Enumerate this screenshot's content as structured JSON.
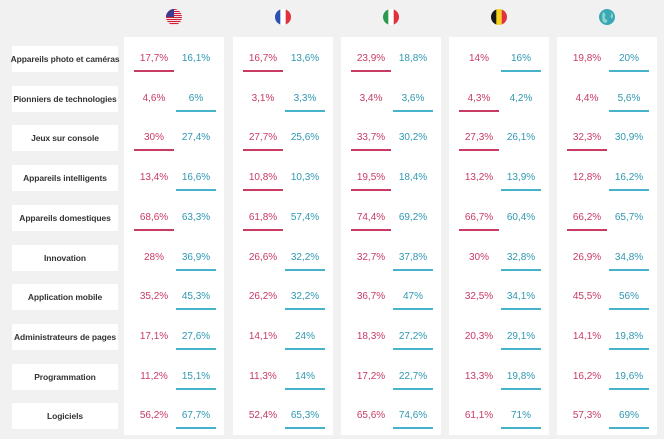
{
  "colors": {
    "series_a": "#c83b63",
    "series_b": "#47b3cb"
  },
  "chart_data": {
    "type": "table",
    "columns": [
      {
        "flag": "us-flag-icon",
        "highlight": "a"
      },
      {
        "flag": "france-flag-icon",
        "highlight": "a"
      },
      {
        "flag": "italy-flag-icon",
        "highlight": "a"
      },
      {
        "flag": "belgium-flag-icon",
        "highlight": "a"
      },
      {
        "flag": "globe-icon",
        "highlight": "b"
      }
    ],
    "rows": [
      {
        "label": "Appareils photo et caméras",
        "cells": [
          [
            "17,7%",
            "16,1%"
          ],
          [
            "16,7%",
            "13,6%"
          ],
          [
            "23,9%",
            "18,8%"
          ],
          [
            "14%",
            "16%"
          ],
          [
            "19,8%",
            "20%"
          ]
        ],
        "underline": [
          "a",
          "a",
          "a",
          "b",
          "b"
        ]
      },
      {
        "label": "Pionniers de technologies",
        "cells": [
          [
            "4,6%",
            "6%"
          ],
          [
            "3,1%",
            "3,3%"
          ],
          [
            "3,4%",
            "3,6%"
          ],
          [
            "4,3%",
            "4,2%"
          ],
          [
            "4,4%",
            "5,6%"
          ]
        ],
        "underline": [
          "b",
          "b",
          "b",
          "a",
          "b"
        ]
      },
      {
        "label": "Jeux sur console",
        "cells": [
          [
            "30%",
            "27,4%"
          ],
          [
            "27,7%",
            "25,6%"
          ],
          [
            "33,7%",
            "30,2%"
          ],
          [
            "27,3%",
            "26,1%"
          ],
          [
            "32,3%",
            "30,9%"
          ]
        ],
        "underline": [
          "a",
          "a",
          "a",
          "a",
          "a"
        ]
      },
      {
        "label": "Appareils intelligents",
        "cells": [
          [
            "13,4%",
            "16,6%"
          ],
          [
            "10,8%",
            "10,3%"
          ],
          [
            "19,5%",
            "18,4%"
          ],
          [
            "13,2%",
            "13,9%"
          ],
          [
            "12,8%",
            "16,2%"
          ]
        ],
        "underline": [
          "b",
          "a",
          "a",
          "b",
          "b"
        ]
      },
      {
        "label": "Appareils domestiques",
        "cells": [
          [
            "68,6%",
            "63,3%"
          ],
          [
            "61,8%",
            "57,4%"
          ],
          [
            "74,4%",
            "69,2%"
          ],
          [
            "66,7%",
            "60,4%"
          ],
          [
            "66,2%",
            "65,7%"
          ]
        ],
        "underline": [
          "a",
          "a",
          "a",
          "a",
          "a"
        ]
      },
      {
        "label": "Innovation",
        "cells": [
          [
            "28%",
            "36,9%"
          ],
          [
            "26,6%",
            "32,2%"
          ],
          [
            "32,7%",
            "37,8%"
          ],
          [
            "30%",
            "32,8%"
          ],
          [
            "26,9%",
            "34,8%"
          ]
        ],
        "underline": [
          "b",
          "b",
          "b",
          "b",
          "b"
        ]
      },
      {
        "label": "Application mobile",
        "cells": [
          [
            "35,2%",
            "45,3%"
          ],
          [
            "26,2%",
            "32,2%"
          ],
          [
            "36,7%",
            "47%"
          ],
          [
            "32,5%",
            "34,1%"
          ],
          [
            "45,5%",
            "56%"
          ]
        ],
        "underline": [
          "b",
          "b",
          "b",
          "b",
          "b"
        ]
      },
      {
        "label": "Administrateurs de pages",
        "cells": [
          [
            "17,1%",
            "27,6%"
          ],
          [
            "14,1%",
            "24%"
          ],
          [
            "18,3%",
            "27,2%"
          ],
          [
            "20,3%",
            "29,1%"
          ],
          [
            "14,1%",
            "19,8%"
          ]
        ],
        "underline": [
          "b",
          "b",
          "b",
          "b",
          "b"
        ]
      },
      {
        "label": "Programmation",
        "cells": [
          [
            "11,2%",
            "15,1%"
          ],
          [
            "11,3%",
            "14%"
          ],
          [
            "17,2%",
            "22,7%"
          ],
          [
            "13,3%",
            "19,8%"
          ],
          [
            "16,2%",
            "19,6%"
          ]
        ],
        "underline": [
          "b",
          "b",
          "b",
          "b",
          "b"
        ]
      },
      {
        "label": "Logiciels",
        "cells": [
          [
            "56,2%",
            "67,7%"
          ],
          [
            "52,4%",
            "65,3%"
          ],
          [
            "65,6%",
            "74,6%"
          ],
          [
            "61,1%",
            "71%"
          ],
          [
            "57,3%",
            "69%"
          ]
        ],
        "underline": [
          "b",
          "b",
          "b",
          "b",
          "b"
        ]
      }
    ]
  }
}
